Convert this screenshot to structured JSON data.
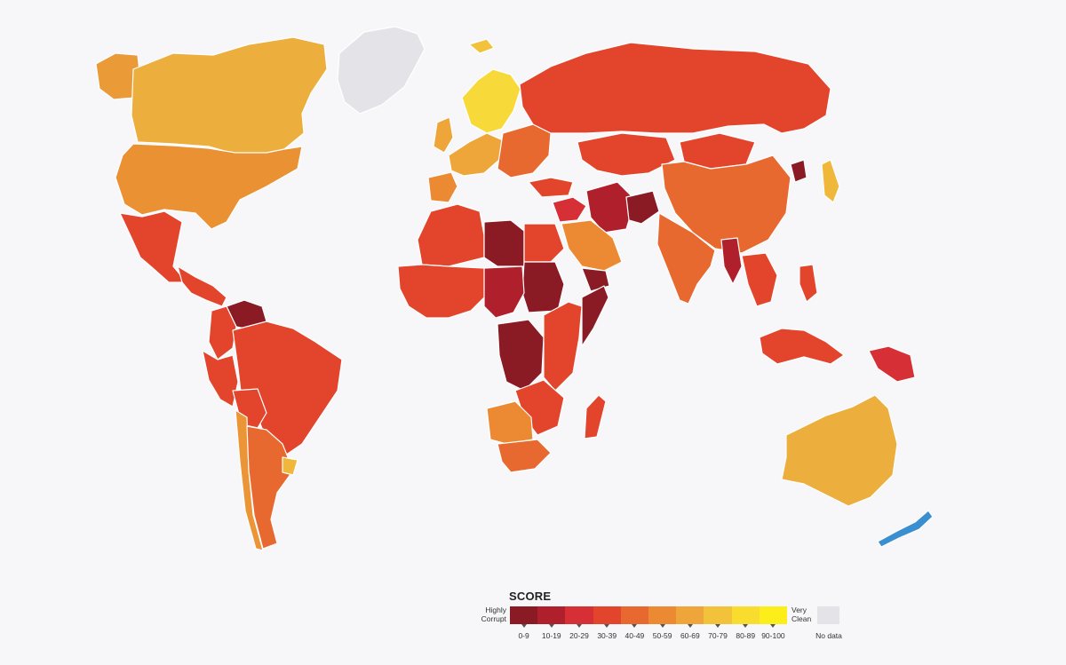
{
  "legend": {
    "title": "SCORE",
    "low_line1": "Highly",
    "low_line2": "Corrupt",
    "high_line1": "Very",
    "high_line2": "Clean",
    "no_data": "No data",
    "no_data_color": "#e4e4e8",
    "bins": [
      {
        "label": "0-9",
        "color": "#8a1a24"
      },
      {
        "label": "10-19",
        "color": "#b0202c"
      },
      {
        "label": "20-29",
        "color": "#d63036"
      },
      {
        "label": "30-39",
        "color": "#e2452c"
      },
      {
        "label": "40-49",
        "color": "#e8692f"
      },
      {
        "label": "50-59",
        "color": "#ec8a34"
      },
      {
        "label": "60-69",
        "color": "#eea63a"
      },
      {
        "label": "70-79",
        "color": "#f2c23a"
      },
      {
        "label": "80-89",
        "color": "#f8dd2e"
      },
      {
        "label": "90-100",
        "color": "#fbee1a"
      }
    ]
  },
  "map": {
    "background": "#f7f7f9",
    "highlight_color": "#3a8fd0",
    "regions": [
      {
        "name": "greenland",
        "fill": "#e4e4e8"
      },
      {
        "name": "canada",
        "fill": "#ecae3d"
      },
      {
        "name": "alaska",
        "fill": "#eb9a38"
      },
      {
        "name": "usa",
        "fill": "#e99133"
      },
      {
        "name": "mexico",
        "fill": "#e2452c"
      },
      {
        "name": "central-america",
        "fill": "#e2452c"
      },
      {
        "name": "venezuela",
        "fill": "#8a1a24"
      },
      {
        "name": "colombia",
        "fill": "#e2452c"
      },
      {
        "name": "peru",
        "fill": "#e2452c"
      },
      {
        "name": "brazil",
        "fill": "#e2452c"
      },
      {
        "name": "bolivia",
        "fill": "#e2452c"
      },
      {
        "name": "chile",
        "fill": "#ec9536"
      },
      {
        "name": "argentina",
        "fill": "#e8692f"
      },
      {
        "name": "uruguay",
        "fill": "#f0b83b"
      },
      {
        "name": "iceland",
        "fill": "#f2c23a"
      },
      {
        "name": "scandinavia",
        "fill": "#f7d93a"
      },
      {
        "name": "uk",
        "fill": "#eea63a"
      },
      {
        "name": "western-europe",
        "fill": "#eea63a"
      },
      {
        "name": "iberia",
        "fill": "#ec8a34"
      },
      {
        "name": "eastern-europe",
        "fill": "#e8692f"
      },
      {
        "name": "russia",
        "fill": "#e2452c"
      },
      {
        "name": "turkey",
        "fill": "#e2452c"
      },
      {
        "name": "central-asia",
        "fill": "#e2452c"
      },
      {
        "name": "mongolia",
        "fill": "#e2452c"
      },
      {
        "name": "china",
        "fill": "#e8692f"
      },
      {
        "name": "north-korea",
        "fill": "#8a1a24"
      },
      {
        "name": "japan",
        "fill": "#f0b83b"
      },
      {
        "name": "middle-east",
        "fill": "#d63036"
      },
      {
        "name": "iran",
        "fill": "#b0202c"
      },
      {
        "name": "afghanistan",
        "fill": "#8a1a24"
      },
      {
        "name": "saudi-arabia",
        "fill": "#ec8a34"
      },
      {
        "name": "yemen",
        "fill": "#8a1a24"
      },
      {
        "name": "india",
        "fill": "#e8692f"
      },
      {
        "name": "southeast-asia",
        "fill": "#e2452c"
      },
      {
        "name": "myanmar",
        "fill": "#b0202c"
      },
      {
        "name": "indonesia",
        "fill": "#e2452c"
      },
      {
        "name": "papua",
        "fill": "#d63036"
      },
      {
        "name": "philippines",
        "fill": "#e2452c"
      },
      {
        "name": "north-africa",
        "fill": "#e2452c"
      },
      {
        "name": "libya",
        "fill": "#8a1a24"
      },
      {
        "name": "egypt",
        "fill": "#e2452c"
      },
      {
        "name": "sudan",
        "fill": "#8a1a24"
      },
      {
        "name": "west-africa",
        "fill": "#e2452c"
      },
      {
        "name": "central-africa",
        "fill": "#b0202c"
      },
      {
        "name": "dr-congo",
        "fill": "#8a1a24"
      },
      {
        "name": "east-africa",
        "fill": "#e2452c"
      },
      {
        "name": "somalia",
        "fill": "#8a1a24"
      },
      {
        "name": "southern-africa",
        "fill": "#e2452c"
      },
      {
        "name": "namibia-botswana",
        "fill": "#ec8a34"
      },
      {
        "name": "south-africa",
        "fill": "#e8692f"
      },
      {
        "name": "madagascar",
        "fill": "#e2452c"
      },
      {
        "name": "australia",
        "fill": "#ecae3d"
      },
      {
        "name": "new-zealand",
        "fill": "#3a8fd0"
      }
    ]
  }
}
